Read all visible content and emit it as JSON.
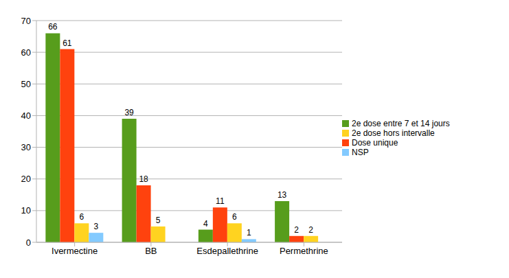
{
  "chart_data": {
    "type": "bar",
    "categories": [
      "Ivermectine",
      "BB",
      "Esdepallethrine",
      "Permethrine"
    ],
    "series": [
      {
        "name": "2e dose entre 7 et 14 jours",
        "color": "#579d1c",
        "values": [
          66,
          39,
          4,
          13
        ]
      },
      {
        "name": "Dose unique",
        "color": "#ff420e",
        "values": [
          61,
          18,
          11,
          2
        ]
      },
      {
        "name": "2e dose hors intervalle",
        "color": "#ffd320",
        "values": [
          6,
          5,
          6,
          2
        ]
      },
      {
        "name": "NSP",
        "color": "#83caff",
        "values": [
          3,
          0,
          1,
          0
        ]
      }
    ],
    "ylim": [
      0,
      70
    ],
    "yticks": [
      0,
      10,
      20,
      30,
      40,
      50,
      60,
      70
    ],
    "grid": true,
    "legend": "right",
    "data_labels": true
  }
}
